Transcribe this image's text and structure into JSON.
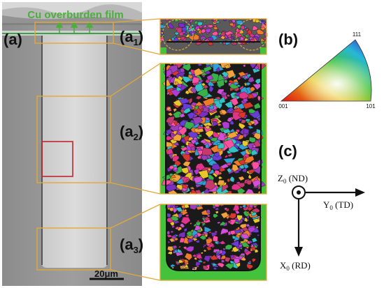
{
  "title_overburden": "Cu overburden film",
  "panel_labels": {
    "a": "(a)",
    "a1": {
      "base": "(a",
      "sub": "1",
      "close": ")"
    },
    "a2": {
      "base": "(a",
      "sub": "2",
      "close": ")"
    },
    "a3": {
      "base": "(a",
      "sub": "3",
      "close": ")"
    },
    "b": "(b)",
    "c": "(c)"
  },
  "scale_bar": "20μm",
  "ipf": {
    "top": "111",
    "left": "001",
    "right": "101"
  },
  "axes": {
    "z": {
      "base": "Z",
      "sub": "0",
      "label": " (ND)"
    },
    "y": {
      "base": "Y",
      "sub": "0",
      "label": " (TD)"
    },
    "x": {
      "base": "X",
      "sub": "0",
      "label": " (RD)"
    }
  },
  "colors": {
    "highlight_box": "#e0a93a",
    "red_box": "#c0262a",
    "overburden_text": "#4cae3c",
    "ebsd_green": "#45c23b"
  }
}
